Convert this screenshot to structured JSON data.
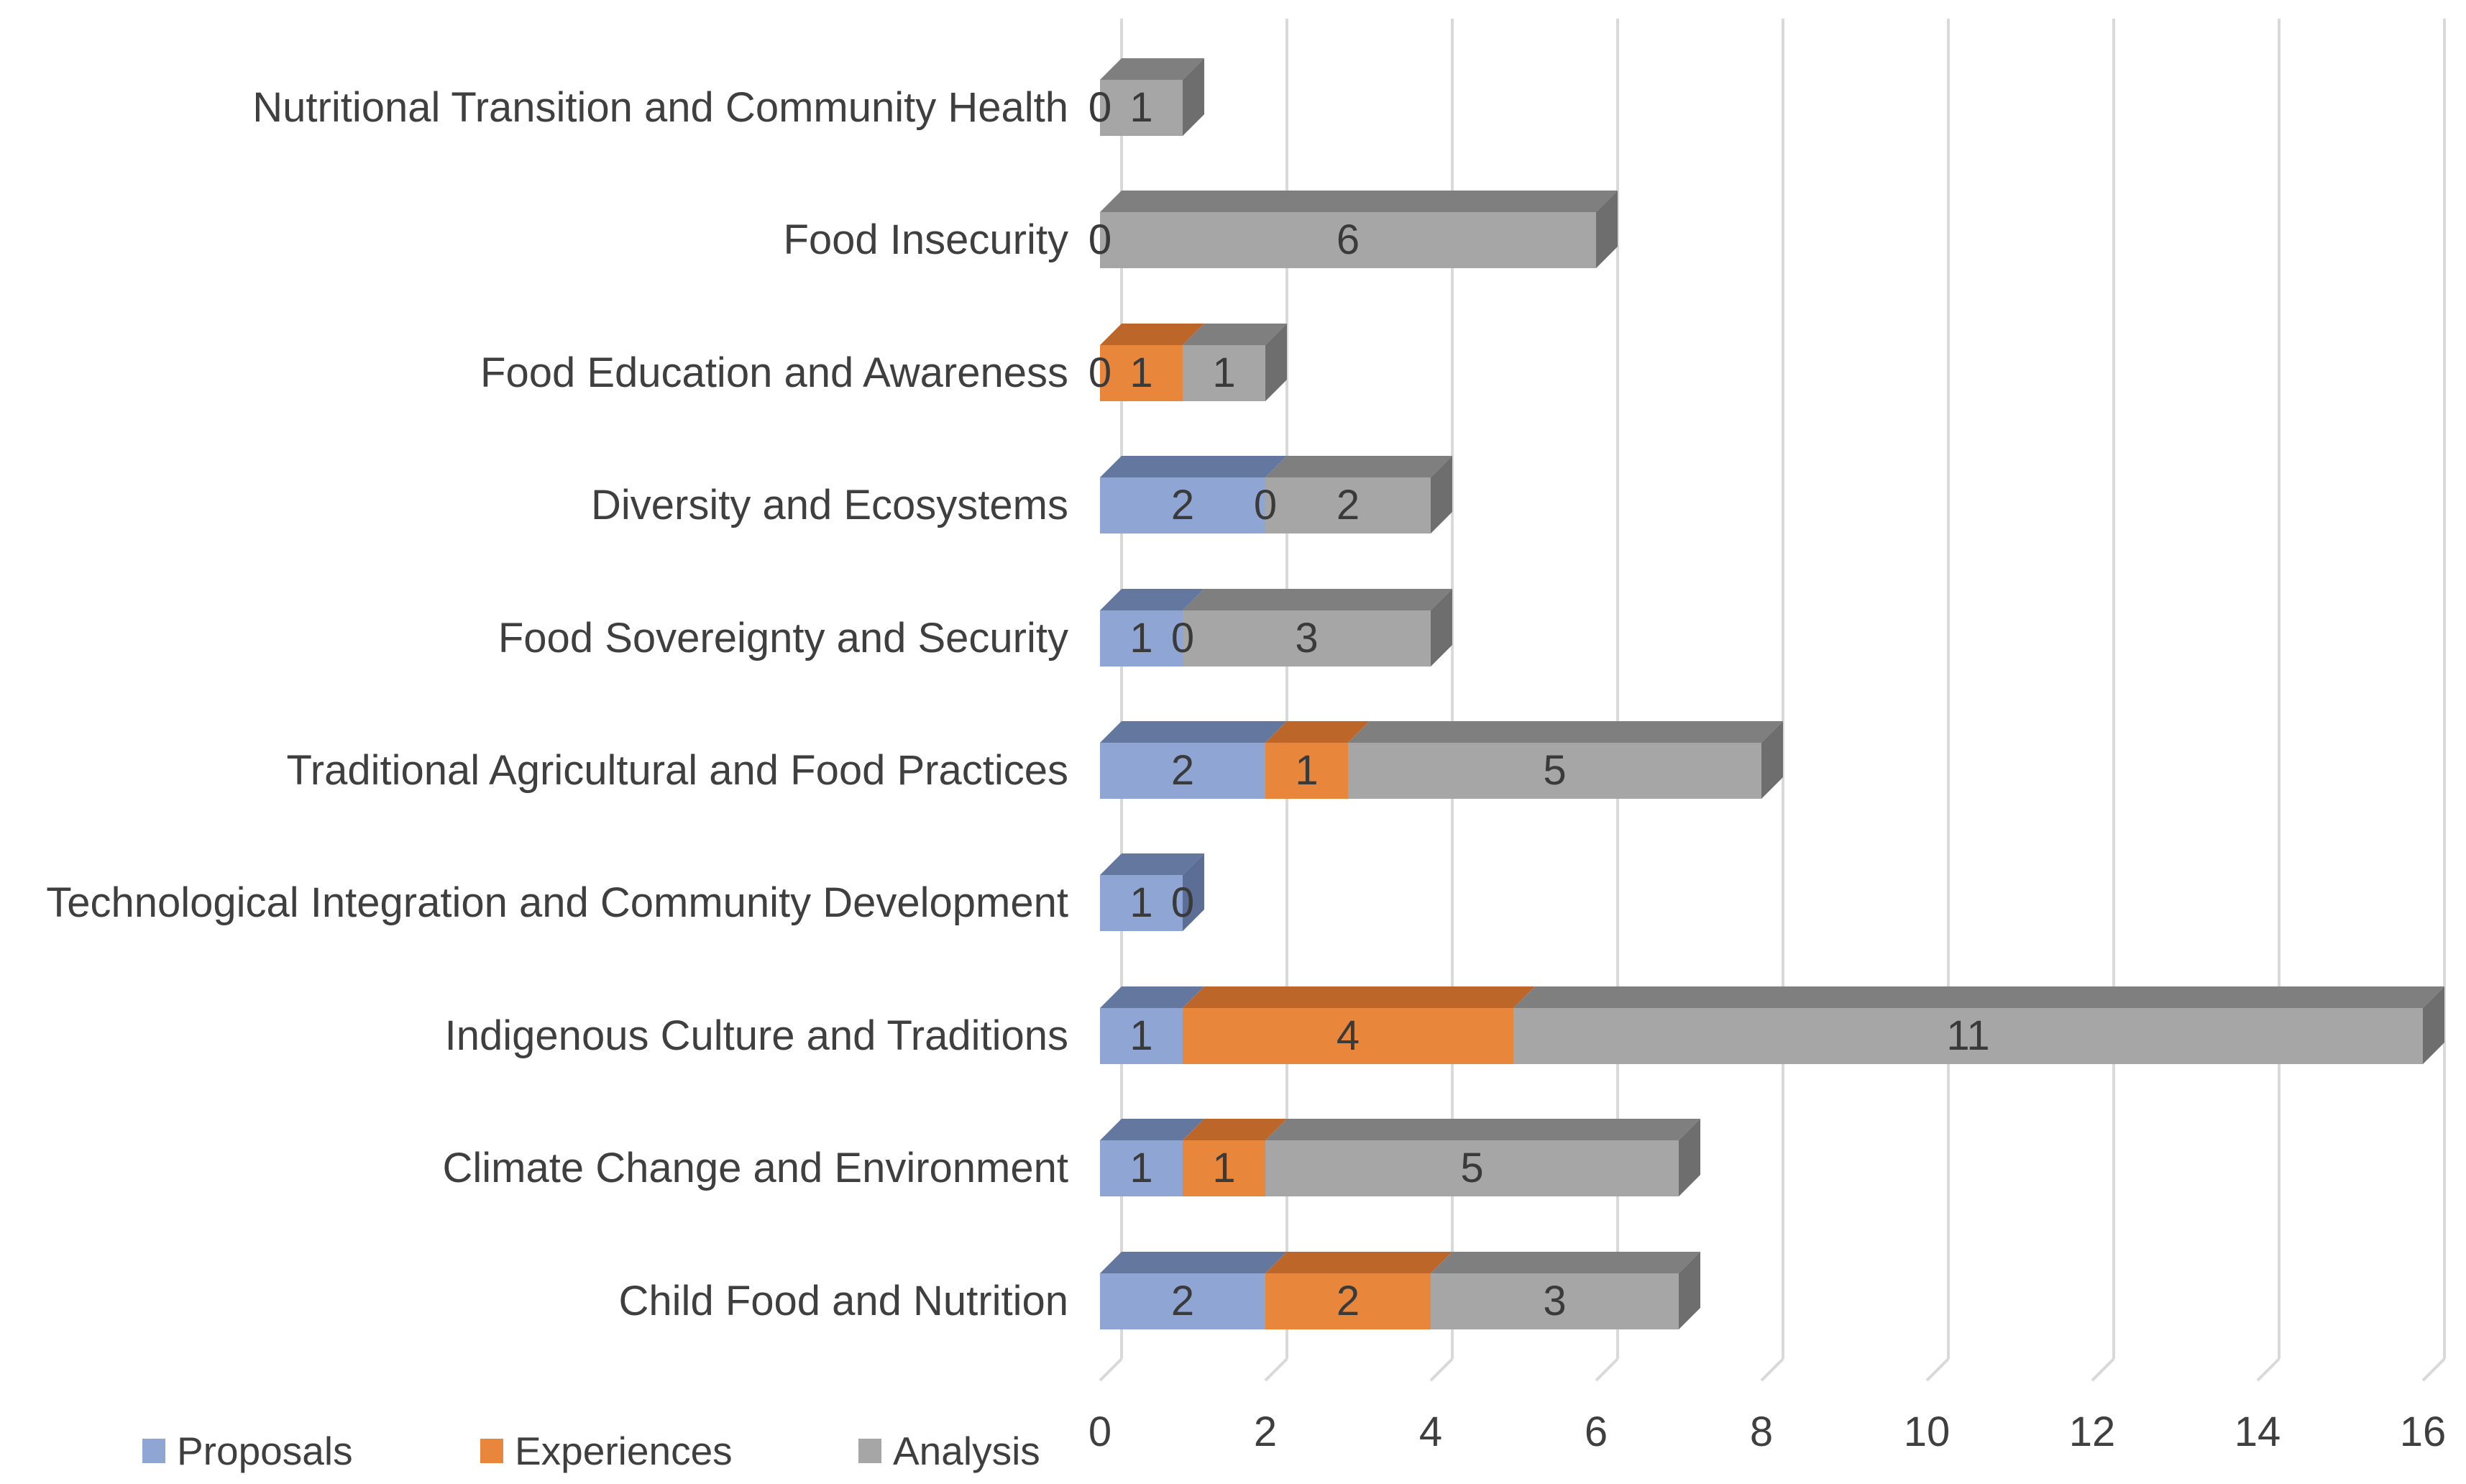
{
  "chart_data": {
    "type": "bar",
    "variant": "horizontal-stacked-3d",
    "title": "",
    "categories": [
      "Nutritional Transition and Community Health",
      "Food Insecurity",
      "Food Education and Awareness",
      "Diversity and Ecosystems",
      "Food Sovereignty and Security",
      "Traditional Agricultural and Food Practices",
      "Technological Integration and Community Development",
      "Indigenous Culture and Traditions",
      "Climate Change and Environment",
      "Child Food and Nutrition"
    ],
    "series": [
      {
        "name": "Proposals",
        "color": "#8FA6D4",
        "color_top": "#64779F",
        "color_side": "#5C6E95",
        "values": [
          0,
          0,
          0,
          2,
          1,
          2,
          1,
          1,
          1,
          2
        ]
      },
      {
        "name": "Experiences",
        "color": "#E8873B",
        "color_top": "#BC6629",
        "color_side": "#B05F26",
        "values": [
          0,
          0,
          1,
          0,
          0,
          1,
          0,
          4,
          1,
          2
        ]
      },
      {
        "name": "Analysis",
        "color": "#A6A6A6",
        "color_top": "#7F7F7F",
        "color_side": "#6E6E6E",
        "values": [
          1,
          6,
          1,
          2,
          3,
          5,
          0,
          11,
          5,
          3
        ]
      }
    ],
    "x_axis": {
      "min": 0,
      "max": 16,
      "ticks": [
        0,
        2,
        4,
        6,
        8,
        10,
        12,
        14,
        16
      ]
    },
    "data_labels_shown": true,
    "grid": true,
    "grid_color": "#D9D9D9",
    "text_color": "#3F3F3F",
    "background": "#FFFFFF",
    "legend": {
      "position": "bottom-left",
      "items": [
        "Proposals",
        "Experiences",
        "Analysis"
      ]
    }
  }
}
